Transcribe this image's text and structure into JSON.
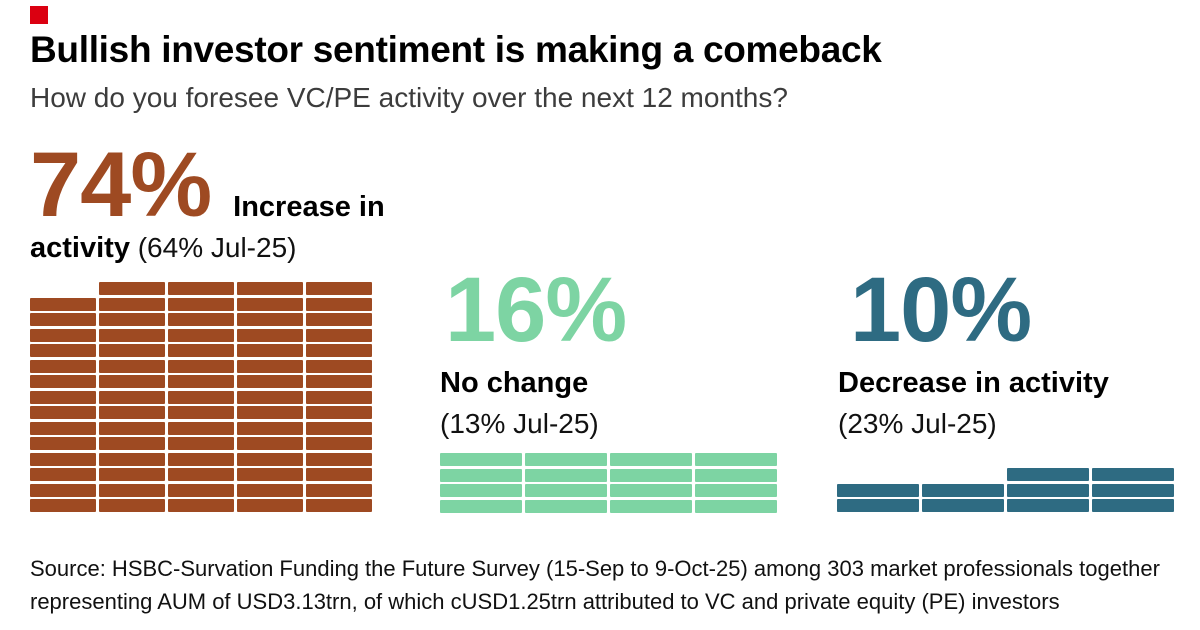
{
  "brand": {
    "mark_color": "#DB0011"
  },
  "header": {
    "title": "Bullish investor sentiment is making a comeback",
    "subtitle": "How do you foresee VC/PE activity over the next 12 months?"
  },
  "chart_data": {
    "type": "waffle",
    "title": "Bullish investor sentiment is making a comeback",
    "question": "How do you foresee VC/PE activity over the next 12 months?",
    "unit_per_brick_pct": 1,
    "layout": {
      "bottom_aligned": true,
      "fill_order": "bottom-up, partial top row right-aligned",
      "legend": "none",
      "grid": "off"
    },
    "series": [
      {
        "name": "Increase in activity",
        "label_line1": "Increase in",
        "label_line2": "activity",
        "value_pct": 74,
        "value_label": "74%",
        "previous_label": "(64% Jul-25)",
        "previous_value_pct": 64,
        "previous_period": "Jul-25",
        "color": "#9E4A22",
        "columns": 5
      },
      {
        "name": "No change",
        "value_pct": 16,
        "value_label": "16%",
        "previous_label": "(13% Jul-25)",
        "previous_value_pct": 13,
        "previous_period": "Jul-25",
        "color": "#7DD4A3",
        "columns": 4
      },
      {
        "name": "Decrease in activity",
        "value_pct": 10,
        "value_label": "10%",
        "previous_label": "(23% Jul-25)",
        "previous_value_pct": 23,
        "previous_period": "Jul-25",
        "color": "#2E6B82",
        "columns": 4
      }
    ]
  },
  "footer": {
    "source_line1": "Source: HSBC-Survation Funding the Future Survey (15-Sep to 9-Oct-25) among 303 market professionals together",
    "source_line2": "representing AUM of USD3.13trn, of which cUSD1.25trn attributed to VC and private equity (PE) investors"
  }
}
